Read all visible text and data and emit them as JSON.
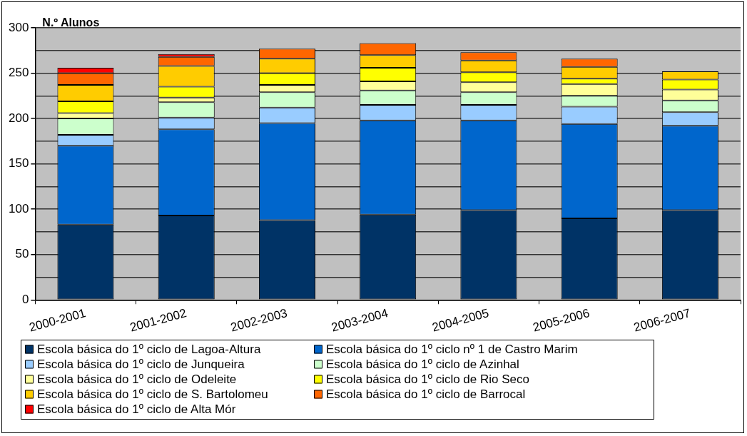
{
  "chart_data": {
    "type": "bar",
    "stacked": true,
    "ylabel": "N.º Alunos",
    "categories": [
      "2000-2001",
      "2001-2002",
      "2002-2003",
      "2003-2004",
      "2004-2005",
      "2005-2006",
      "2006-2007"
    ],
    "ylim": [
      0,
      300
    ],
    "yticks": [
      0,
      {
        "value": 25,
        "label": null
      },
      50,
      {
        "value": 75,
        "label": null
      },
      100,
      {
        "value": 125,
        "label": null
      },
      150,
      {
        "value": 175,
        "label": null
      },
      200,
      {
        "value": 225,
        "label": null
      },
      250,
      {
        "value": 275,
        "label": null
      },
      300
    ],
    "grid": "y",
    "legend": "bottom",
    "series": [
      {
        "name": "Escola básica do 1º ciclo de Lagoa-Altura",
        "color": "#003366",
        "values": [
          83,
          93,
          88,
          94,
          99,
          90,
          99
        ]
      },
      {
        "name": "Escola básica do 1º ciclo nº 1 de Castro Marim",
        "color": "#0066cc",
        "values": [
          87,
          95,
          107,
          104,
          99,
          104,
          93
        ]
      },
      {
        "name": "Escola básica do 1º ciclo de Junqueira",
        "color": "#99ccff",
        "values": [
          12,
          13,
          17,
          17,
          17,
          19,
          15
        ]
      },
      {
        "name": "Escola básica do 1º ciclo de Azinhal",
        "color": "#ccffcc",
        "values": [
          18,
          17,
          17,
          16,
          14,
          12,
          13
        ]
      },
      {
        "name": "Escola básica do 1º ciclo de Odeleite",
        "color": "#ffff99",
        "values": [
          6,
          5,
          8,
          10,
          11,
          13,
          12
        ]
      },
      {
        "name": "Escola básica do 1º ciclo de Rio Seco",
        "color": "#ffff00",
        "values": [
          13,
          12,
          13,
          15,
          11,
          6,
          11
        ]
      },
      {
        "name": "Escola básica do 1º ciclo de S. Bartolomeu",
        "color": "#ffcc00",
        "values": [
          18,
          23,
          16,
          14,
          13,
          13,
          9
        ]
      },
      {
        "name": "Escola básica do 1º ciclo de Barrocal",
        "color": "#ff6600",
        "values": [
          13,
          10,
          11,
          13,
          9,
          9,
          0
        ]
      },
      {
        "name": "Escola básica do 1º ciclo de Alta Mór",
        "color": "#ff0000",
        "values": [
          6,
          3,
          0,
          0,
          0,
          0,
          0
        ]
      }
    ]
  }
}
